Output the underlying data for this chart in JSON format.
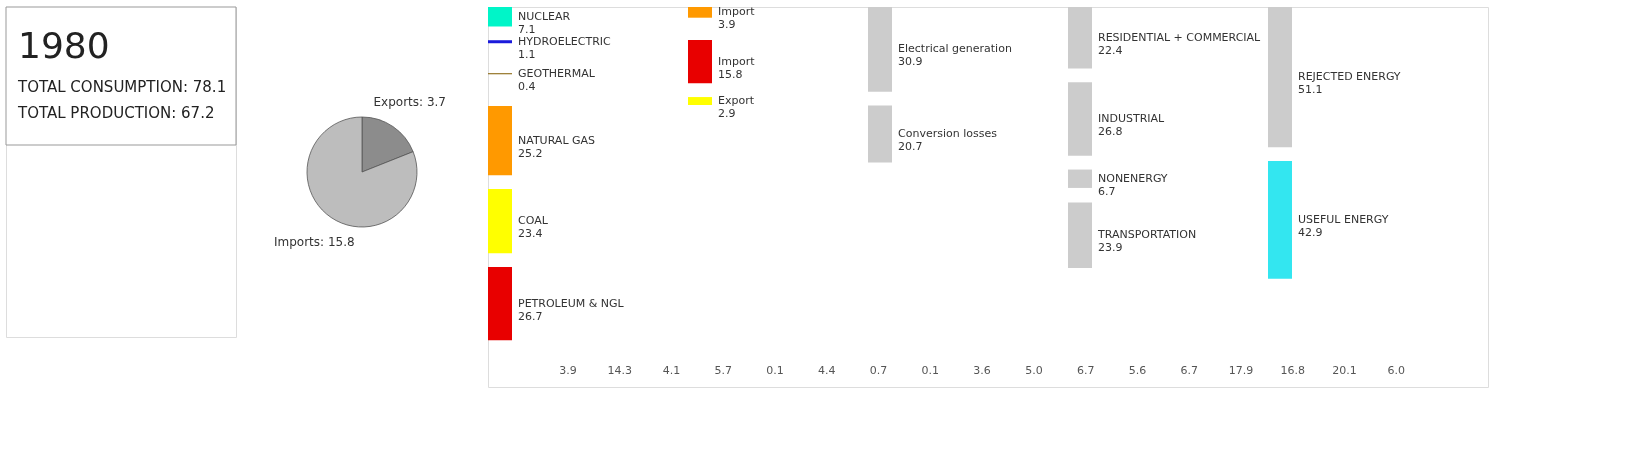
{
  "chart_data": [
    {
      "type": "other",
      "title": "1980",
      "annotations": [
        "TOTAL CONSUMPTION: 78.1",
        "TOTAL PRODUCTION: 67.2"
      ]
    },
    {
      "type": "pie",
      "categories": [
        null,
        null
      ],
      "values": [
        3.7,
        15.8
      ],
      "colors": [
        "#8c8c8c",
        "#bdbdbd"
      ],
      "value_labels": [
        "Exports: 3.7",
        "Imports: 15.8"
      ]
    },
    {
      "type": "other",
      "categories": [
        "NUCLEAR",
        "HYDROELECTRIC",
        "GEOTHERMAL",
        "NATURAL GAS",
        "COAL",
        "PETROLEUM & NGL",
        "Import",
        "Import",
        "Export",
        "Electrical generation",
        "Conversion losses",
        "RESIDENTIAL + COMMERCIAL",
        "INDUSTRIAL",
        "NONENERGY",
        "TRANSPORTATION",
        "REJECTED ENERGY",
        "USEFUL ENERGY"
      ],
      "data_labels": true,
      "values": [
        7.1,
        1.1,
        0.4,
        25.2,
        23.4,
        26.7,
        3.9,
        15.8,
        2.9,
        30.9,
        20.7,
        22.4,
        26.8,
        6.7,
        23.9,
        51.1,
        42.9
      ],
      "colors": [
        "#00f5c8",
        "#1a1adb",
        "#8b6914",
        "#ff9900",
        "#ffff00",
        "#e80000",
        "#ff9900",
        "#e80000",
        "#ffff00",
        "#cccccc",
        "#cccccc",
        "#cccccc",
        "#cccccc",
        "#cccccc",
        "#cccccc",
        "#cccccc",
        "#33e6f0"
      ],
      "annotations": [
        "3.9",
        "14.3",
        "4.1",
        "5.7",
        "0.1",
        "4.4",
        "0.7",
        "0.1",
        "3.6",
        "5.0",
        "6.7",
        "5.6",
        "6.7",
        "17.9",
        "16.8",
        "20.1",
        "6.0"
      ]
    }
  ]
}
